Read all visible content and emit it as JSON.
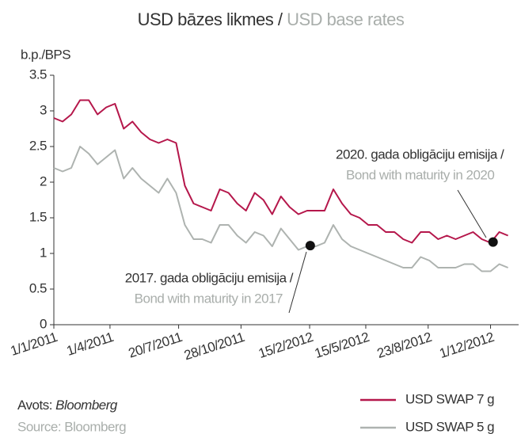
{
  "chart_data": {
    "type": "line",
    "title": "USD bāzes likmes / ",
    "title_en": "USD base rates",
    "y_label": "b.p./BPS",
    "x": [
      "2011-01-01",
      "2011-01-15",
      "2011-01-29",
      "2011-02-12",
      "2011-02-26",
      "2011-03-12",
      "2011-03-26",
      "2011-04-09",
      "2011-04-23",
      "2011-05-07",
      "2011-05-21",
      "2011-06-04",
      "2011-06-18",
      "2011-07-02",
      "2011-07-16",
      "2011-07-30",
      "2011-08-13",
      "2011-08-27",
      "2011-09-10",
      "2011-09-24",
      "2011-10-08",
      "2011-10-22",
      "2011-11-05",
      "2011-11-19",
      "2011-12-03",
      "2011-12-17",
      "2011-12-31",
      "2012-01-14",
      "2012-01-28",
      "2012-02-11",
      "2012-02-25",
      "2012-03-10",
      "2012-03-24",
      "2012-04-07",
      "2012-04-21",
      "2012-05-05",
      "2012-05-19",
      "2012-06-02",
      "2012-06-16",
      "2012-06-30",
      "2012-07-14",
      "2012-07-28",
      "2012-08-11",
      "2012-08-25",
      "2012-09-08",
      "2012-09-22",
      "2012-10-06",
      "2012-10-20",
      "2012-11-03",
      "2012-11-17",
      "2012-12-01",
      "2012-12-15",
      "2012-12-29"
    ],
    "series": [
      {
        "name": "USD SWAP 7 g",
        "color": "#b5174b",
        "values": [
          2.9,
          2.85,
          2.95,
          3.15,
          3.15,
          2.95,
          3.05,
          3.1,
          2.75,
          2.85,
          2.7,
          2.6,
          2.55,
          2.6,
          2.55,
          1.95,
          1.7,
          1.65,
          1.6,
          1.9,
          1.85,
          1.7,
          1.6,
          1.85,
          1.75,
          1.55,
          1.8,
          1.65,
          1.55,
          1.6,
          1.6,
          1.6,
          1.9,
          1.7,
          1.55,
          1.5,
          1.4,
          1.4,
          1.3,
          1.3,
          1.2,
          1.15,
          1.3,
          1.3,
          1.2,
          1.25,
          1.2,
          1.25,
          1.3,
          1.2,
          1.15,
          1.3,
          1.25
        ]
      },
      {
        "name": "USD SWAP 5 g",
        "color": "#aeb3b0",
        "values": [
          2.2,
          2.15,
          2.2,
          2.5,
          2.4,
          2.25,
          2.35,
          2.45,
          2.05,
          2.2,
          2.05,
          1.95,
          1.85,
          2.05,
          1.85,
          1.4,
          1.2,
          1.2,
          1.15,
          1.4,
          1.4,
          1.25,
          1.15,
          1.3,
          1.25,
          1.1,
          1.35,
          1.2,
          1.05,
          1.1,
          1.1,
          1.15,
          1.4,
          1.2,
          1.1,
          1.05,
          1.0,
          0.95,
          0.9,
          0.85,
          0.8,
          0.8,
          0.95,
          0.9,
          0.8,
          0.8,
          0.8,
          0.85,
          0.85,
          0.75,
          0.75,
          0.85,
          0.8
        ]
      }
    ],
    "xlim": [
      "2011-01-01",
      "2013-01-15"
    ],
    "xticks": [
      {
        "value": "2011-01-01",
        "label": "1/1/2011"
      },
      {
        "value": "2011-04-01",
        "label": "1/4/2011"
      },
      {
        "value": "2011-07-20",
        "label": "20/7/2011"
      },
      {
        "value": "2011-10-28",
        "label": "28/10/2011"
      },
      {
        "value": "2012-02-15",
        "label": "15/2/2012"
      },
      {
        "value": "2012-05-15",
        "label": "15/5/2012"
      },
      {
        "value": "2012-08-23",
        "label": "23/8/2012"
      },
      {
        "value": "2012-12-01",
        "label": "1/12/2012"
      }
    ],
    "ylim": [
      0,
      3.5
    ],
    "yticks": [
      0,
      0.5,
      1,
      1.5,
      2,
      2.5,
      3,
      3.5
    ],
    "annotations": [
      {
        "text": "2017. gada obligāciju emisija /",
        "text_en": "Bond with maturity in 2017",
        "x": "2012-02-16",
        "y": 1.11
      },
      {
        "text": "2020. gada obligāciju emisija /",
        "text_en": "Bond with maturity in 2020",
        "x": "2012-12-05",
        "y": 1.16
      }
    ],
    "source_lv": "Avots: ",
    "source_lv_name": "Bloomberg",
    "source_en": "Source: Bloomberg"
  }
}
